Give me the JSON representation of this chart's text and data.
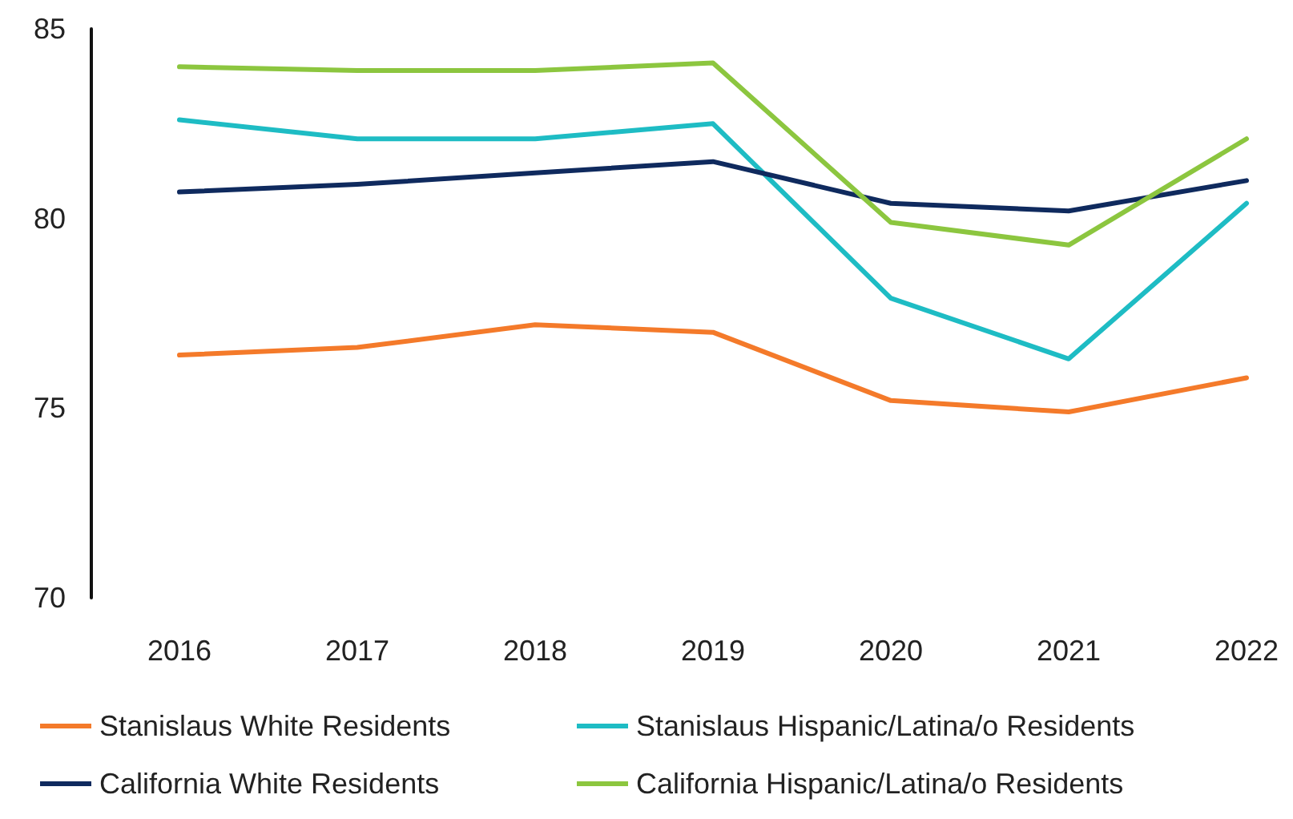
{
  "chart_data": {
    "type": "line",
    "categories": [
      "2016",
      "2017",
      "2018",
      "2019",
      "2020",
      "2021",
      "2022"
    ],
    "series": [
      {
        "name": "Stanislaus White Residents",
        "color": "#f47a2a",
        "values": [
          76.4,
          76.6,
          77.2,
          77.0,
          75.2,
          74.9,
          75.8
        ]
      },
      {
        "name": "Stanislaus Hispanic/Latina/o Residents",
        "color": "#1ebcc4",
        "values": [
          82.6,
          82.1,
          82.1,
          82.5,
          77.9,
          76.3,
          80.4
        ]
      },
      {
        "name": "California White Residents",
        "color": "#0f2a5e",
        "values": [
          80.7,
          80.9,
          81.2,
          81.5,
          80.4,
          80.2,
          81.0
        ]
      },
      {
        "name": "California Hispanic/Latina/o Residents",
        "color": "#8cc63f",
        "values": [
          84.0,
          83.9,
          83.9,
          84.1,
          79.9,
          79.3,
          82.1
        ]
      }
    ],
    "ylim": [
      70,
      85
    ],
    "yticks": [
      70,
      75,
      80,
      85
    ],
    "grid": false,
    "legend": "bottom",
    "marker": "none",
    "line_style": "solid"
  }
}
